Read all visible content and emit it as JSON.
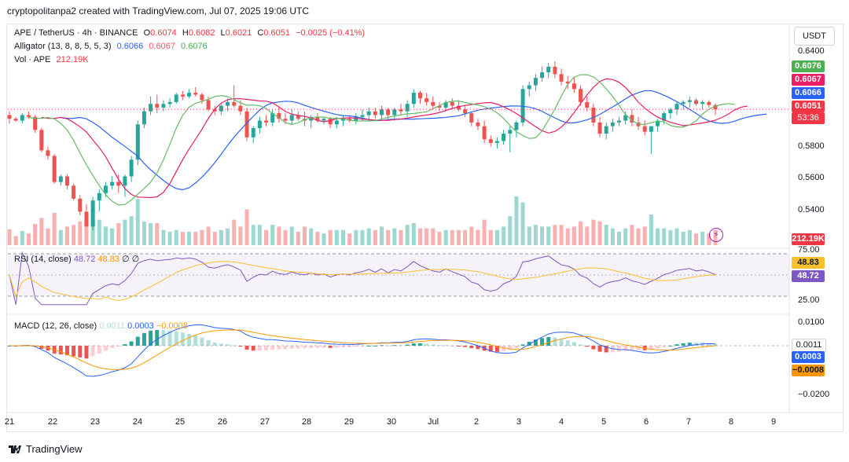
{
  "caption": "cryptopolitanpa2 created with TradingView.com, Jul 07, 2025 19:06 UTC",
  "legend": {
    "symbol": "APE / TetherUS · 4h · BINANCE",
    "o_label": "O",
    "o_value": "0.6074",
    "h_label": "H",
    "h_value": "0.6082",
    "l_label": "L",
    "l_value": "0.6021",
    "c_label": "C",
    "c_value": "0.6051",
    "change": "−0.0025 (−0.41%)",
    "alligator_label": "Alligator (13, 8, 8, 5, 5, 3)",
    "alligator_jaw": "0.6066",
    "alligator_teeth": "0.6067",
    "alligator_lips": "0.6076",
    "vol_label": "Vol · APE",
    "vol_value": "212.19K"
  },
  "currency_button": "USDT",
  "price_axis": {
    "ticks": [
      "0.6400",
      "0.5800",
      "0.5600",
      "0.5400"
    ],
    "tags": {
      "lips": "0.6076",
      "teeth": "0.6067",
      "jaw": "0.6066",
      "close": "0.6051",
      "countdown": "53:36",
      "volume": "212.19K"
    }
  },
  "rsi": {
    "label": "RSI (14, close)",
    "value": "48.72",
    "ma_value": "48.83",
    "extra1": "∅",
    "extra2": "∅",
    "ticks": [
      "75.00",
      "25.00"
    ],
    "tag_ma": "48.83",
    "tag_rsi": "48.72"
  },
  "macd": {
    "label": "MACD (12, 26, close)",
    "hist_value": "0.0011",
    "macd_value": "0.0003",
    "signal_value": "−0.0008",
    "ticks": [
      "0.0100",
      "−0.0200"
    ],
    "tag_hist": "0.0011",
    "tag_macd": "0.0003",
    "tag_signal": "−0.0008"
  },
  "dates": [
    "21",
    "22",
    "23",
    "24",
    "25",
    "26",
    "27",
    "28",
    "29",
    "30",
    "Jul",
    "2",
    "3",
    "4",
    "5",
    "6",
    "7",
    "8",
    "9"
  ],
  "footer": "TradingView",
  "colors": {
    "up": "#26a69a",
    "down": "#ef5350",
    "jaw": "#2962ff",
    "teeth": "#e91e63",
    "lips": "#66bb6a",
    "rsi": "#7e57c2",
    "rsi_ma": "#fbc02d",
    "macd": "#2962ff",
    "signal": "#ff9800"
  },
  "chart_data": {
    "type": "candlestick",
    "symbol": "APE / TetherUS",
    "interval": "4h",
    "ylim": [
      0.532,
      0.647
    ],
    "candles_ohlc": [
      [
        0.602,
        0.604,
        0.5975,
        0.6
      ],
      [
        0.6,
        0.601,
        0.5985,
        0.599
      ],
      [
        0.599,
        0.603,
        0.5975,
        0.602
      ],
      [
        0.602,
        0.604,
        0.6,
        0.601
      ],
      [
        0.601,
        0.602,
        0.5925,
        0.594
      ],
      [
        0.594,
        0.595,
        0.582,
        0.583
      ],
      [
        0.583,
        0.585,
        0.578,
        0.58
      ],
      [
        0.58,
        0.581,
        0.565,
        0.566
      ],
      [
        0.566,
        0.57,
        0.564,
        0.569
      ],
      [
        0.569,
        0.57,
        0.562,
        0.564
      ],
      [
        0.564,
        0.565,
        0.556,
        0.557
      ],
      [
        0.557,
        0.559,
        0.548,
        0.55
      ],
      [
        0.55,
        0.554,
        0.544,
        0.542
      ],
      [
        0.542,
        0.558,
        0.54,
        0.556
      ],
      [
        0.556,
        0.562,
        0.55,
        0.56
      ],
      [
        0.56,
        0.566,
        0.558,
        0.564
      ],
      [
        0.564,
        0.569,
        0.562,
        0.566
      ],
      [
        0.566,
        0.57,
        0.56,
        0.564
      ],
      [
        0.564,
        0.57,
        0.558,
        0.569
      ],
      [
        0.569,
        0.58,
        0.566,
        0.578
      ],
      [
        0.578,
        0.599,
        0.575,
        0.597
      ],
      [
        0.597,
        0.606,
        0.595,
        0.604
      ],
      [
        0.604,
        0.612,
        0.602,
        0.608
      ],
      [
        0.608,
        0.613,
        0.603,
        0.606
      ],
      [
        0.606,
        0.61,
        0.604,
        0.608
      ],
      [
        0.608,
        0.611,
        0.606,
        0.609
      ],
      [
        0.609,
        0.614,
        0.608,
        0.613
      ],
      [
        0.613,
        0.615,
        0.61,
        0.612
      ],
      [
        0.612,
        0.616,
        0.611,
        0.614
      ],
      [
        0.614,
        0.617,
        0.612,
        0.613
      ],
      [
        0.613,
        0.614,
        0.608,
        0.61
      ],
      [
        0.61,
        0.612,
        0.604,
        0.605
      ],
      [
        0.605,
        0.607,
        0.602,
        0.604
      ],
      [
        0.604,
        0.608,
        0.602,
        0.607
      ],
      [
        0.607,
        0.611,
        0.604,
        0.609
      ],
      [
        0.609,
        0.618,
        0.606,
        0.607
      ],
      [
        0.607,
        0.61,
        0.602,
        0.604
      ],
      [
        0.604,
        0.606,
        0.588,
        0.59
      ],
      [
        0.59,
        0.596,
        0.587,
        0.595
      ],
      [
        0.595,
        0.601,
        0.592,
        0.599
      ],
      [
        0.599,
        0.602,
        0.596,
        0.598
      ],
      [
        0.598,
        0.605,
        0.596,
        0.603
      ],
      [
        0.603,
        0.606,
        0.598,
        0.6
      ],
      [
        0.6,
        0.603,
        0.597,
        0.599
      ],
      [
        0.599,
        0.605,
        0.597,
        0.602
      ],
      [
        0.602,
        0.604,
        0.599,
        0.6
      ],
      [
        0.6,
        0.604,
        0.596,
        0.599
      ],
      [
        0.599,
        0.602,
        0.595,
        0.601
      ],
      [
        0.601,
        0.603,
        0.598,
        0.599
      ],
      [
        0.599,
        0.601,
        0.597,
        0.6
      ],
      [
        0.6,
        0.601,
        0.595,
        0.597
      ],
      [
        0.597,
        0.601,
        0.595,
        0.599
      ],
      [
        0.599,
        0.602,
        0.596,
        0.6
      ],
      [
        0.6,
        0.602,
        0.598,
        0.599
      ],
      [
        0.599,
        0.603,
        0.597,
        0.601
      ],
      [
        0.601,
        0.605,
        0.599,
        0.602
      ],
      [
        0.602,
        0.606,
        0.599,
        0.604
      ],
      [
        0.604,
        0.606,
        0.6,
        0.602
      ],
      [
        0.602,
        0.607,
        0.599,
        0.605
      ],
      [
        0.605,
        0.606,
        0.6,
        0.602
      ],
      [
        0.602,
        0.606,
        0.599,
        0.605
      ],
      [
        0.605,
        0.608,
        0.602,
        0.604
      ],
      [
        0.604,
        0.61,
        0.601,
        0.608
      ],
      [
        0.608,
        0.616,
        0.606,
        0.614
      ],
      [
        0.614,
        0.615,
        0.608,
        0.611
      ],
      [
        0.611,
        0.614,
        0.607,
        0.609
      ],
      [
        0.609,
        0.612,
        0.605,
        0.607
      ],
      [
        0.607,
        0.609,
        0.604,
        0.606
      ],
      [
        0.606,
        0.61,
        0.604,
        0.609
      ],
      [
        0.609,
        0.611,
        0.605,
        0.607
      ],
      [
        0.607,
        0.61,
        0.604,
        0.605
      ],
      [
        0.605,
        0.607,
        0.601,
        0.603
      ],
      [
        0.603,
        0.604,
        0.596,
        0.598
      ],
      [
        0.598,
        0.6,
        0.594,
        0.596
      ],
      [
        0.596,
        0.599,
        0.587,
        0.589
      ],
      [
        0.589,
        0.591,
        0.585,
        0.587
      ],
      [
        0.587,
        0.59,
        0.584,
        0.588
      ],
      [
        0.588,
        0.594,
        0.586,
        0.592
      ],
      [
        0.592,
        0.596,
        0.582,
        0.594
      ],
      [
        0.594,
        0.599,
        0.59,
        0.598
      ],
      [
        0.598,
        0.618,
        0.596,
        0.616
      ],
      [
        0.616,
        0.62,
        0.612,
        0.618
      ],
      [
        0.618,
        0.624,
        0.615,
        0.622
      ],
      [
        0.622,
        0.628,
        0.62,
        0.625
      ],
      [
        0.625,
        0.63,
        0.622,
        0.628
      ],
      [
        0.628,
        0.631,
        0.622,
        0.624
      ],
      [
        0.624,
        0.627,
        0.618,
        0.62
      ],
      [
        0.62,
        0.623,
        0.616,
        0.619
      ],
      [
        0.619,
        0.622,
        0.614,
        0.616
      ],
      [
        0.616,
        0.618,
        0.607,
        0.609
      ],
      [
        0.609,
        0.612,
        0.604,
        0.606
      ],
      [
        0.606,
        0.608,
        0.596,
        0.598
      ],
      [
        0.598,
        0.601,
        0.59,
        0.592
      ],
      [
        0.592,
        0.598,
        0.589,
        0.596
      ],
      [
        0.596,
        0.6,
        0.593,
        0.598
      ],
      [
        0.598,
        0.601,
        0.596,
        0.599
      ],
      [
        0.599,
        0.604,
        0.597,
        0.602
      ],
      [
        0.602,
        0.605,
        0.596,
        0.598
      ],
      [
        0.598,
        0.601,
        0.594,
        0.596
      ],
      [
        0.596,
        0.599,
        0.591,
        0.593
      ],
      [
        0.593,
        0.596,
        0.581,
        0.596
      ],
      [
        0.596,
        0.6,
        0.593,
        0.599
      ],
      [
        0.599,
        0.604,
        0.597,
        0.603
      ],
      [
        0.603,
        0.606,
        0.6,
        0.605
      ],
      [
        0.605,
        0.609,
        0.602,
        0.608
      ],
      [
        0.608,
        0.61,
        0.605,
        0.609
      ],
      [
        0.609,
        0.612,
        0.606,
        0.61
      ],
      [
        0.61,
        0.611,
        0.607,
        0.608
      ],
      [
        0.608,
        0.61,
        0.605,
        0.609
      ],
      [
        0.609,
        0.61,
        0.606,
        0.6074
      ],
      [
        0.6074,
        0.6082,
        0.6021,
        0.6051
      ]
    ]
  }
}
